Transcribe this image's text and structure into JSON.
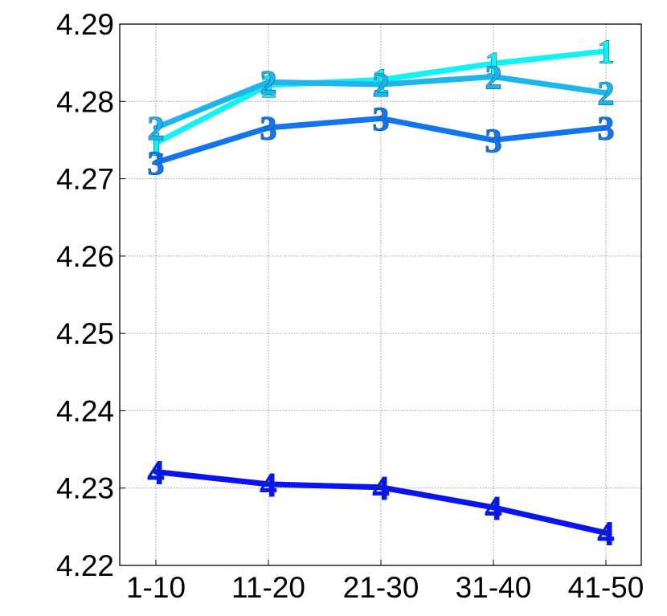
{
  "chart_data": {
    "type": "line",
    "title": "",
    "xlabel": "",
    "ylabel": "",
    "categories": [
      "1-10",
      "11-20",
      "21-30",
      "31-40",
      "41-50"
    ],
    "ylim": [
      4.22,
      4.29
    ],
    "yticks": [
      "4.22",
      "4.23",
      "4.24",
      "4.25",
      "4.26",
      "4.27",
      "4.28",
      "4.29"
    ],
    "grid": true,
    "legend": "none",
    "series": [
      {
        "marker": "1",
        "color": "#13f2f2",
        "values": [
          4.2746,
          4.2821,
          4.2828,
          4.2849,
          4.2865
        ]
      },
      {
        "marker": "2",
        "color": "#1eb5ee",
        "values": [
          4.2766,
          4.2825,
          4.2822,
          4.2832,
          4.2811
        ]
      },
      {
        "marker": "3",
        "color": "#1275ee",
        "values": [
          4.2721,
          4.2766,
          4.2778,
          4.275,
          4.2766
        ]
      },
      {
        "marker": "4",
        "color": "#0a14ee",
        "values": [
          4.2321,
          4.2305,
          4.2301,
          4.2275,
          4.2242
        ]
      }
    ]
  }
}
